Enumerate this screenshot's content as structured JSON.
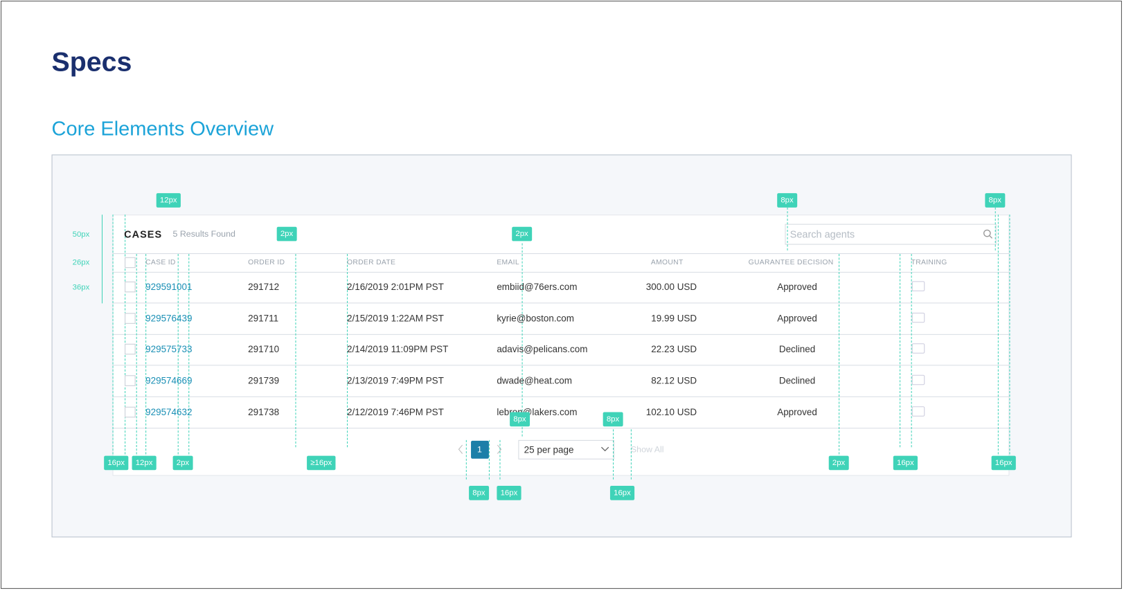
{
  "header": {
    "title": "Specs",
    "subtitle": "Core Elements Overview"
  },
  "table": {
    "title": "CASES",
    "results": "5 Results Found",
    "search_placeholder": "Search agents",
    "columns": [
      "CASE ID",
      "ORDER ID",
      "ORDER DATE",
      "EMAIL",
      "AMOUNT",
      "GUARANTEE DECISION",
      "TRAINING"
    ],
    "rows": [
      [
        "929591001",
        "291712",
        "2/16/2019 2:01PM PST",
        "embiid@76ers.com",
        "300.00 USD",
        "Approved"
      ],
      [
        "929576439",
        "291711",
        "2/15/2019 1:22AM PST",
        "kyrie@boston.com",
        "19.99 USD",
        "Approved"
      ],
      [
        "929575733",
        "291710",
        "2/14/2019 11:09PM PST",
        "adavis@pelicans.com",
        "22.23 USD",
        "Declined"
      ],
      [
        "929574669",
        "291739",
        "2/13/2019 7:49PM PST",
        "dwade@heat.com",
        "82.12 USD",
        "Declined"
      ],
      [
        "929574632",
        "291738",
        "2/12/2019 7:46PM PST",
        "lebron@lakers.com",
        "102.10 USD",
        "Approved"
      ]
    ]
  },
  "pagination": {
    "page": "1",
    "per_page": "25 per page",
    "show_all": "Show All"
  },
  "annotations": [
    "12px",
    "8px",
    "8px",
    "2px",
    "2px",
    "50px",
    "26px",
    "36px",
    "8px",
    "8px",
    "16px",
    "12px",
    "2px",
    "≥16px",
    "2px",
    "16px",
    "16px",
    "8px",
    "16px",
    "16px"
  ]
}
